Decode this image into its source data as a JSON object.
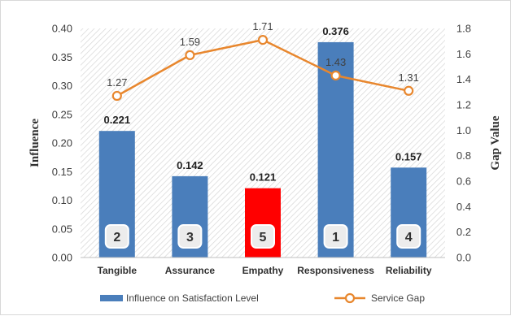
{
  "chart_data": {
    "type": "bar",
    "categories": [
      "Tangible",
      "Assurance",
      "Empathy",
      "Responsiveness",
      "Reliability"
    ],
    "series": [
      {
        "name": "Influence on Satisfaction Level",
        "type": "bar",
        "axis": "left",
        "values": [
          0.221,
          0.142,
          0.121,
          0.376,
          0.157
        ],
        "value_labels": [
          "0.221",
          "0.142",
          "0.121",
          "0.376",
          "0.157"
        ],
        "color": "#4a7ebb",
        "highlight": {
          "category": "Empathy",
          "color": "#ff0000"
        }
      },
      {
        "name": "Service Gap",
        "type": "line",
        "axis": "right",
        "values": [
          1.27,
          1.59,
          1.71,
          1.43,
          1.31
        ],
        "value_labels": [
          "1.27",
          "1.59",
          "1.71",
          "1.43",
          "1.31"
        ],
        "color": "#e8872e"
      }
    ],
    "ranks": [
      "2",
      "3",
      "5",
      "1",
      "4"
    ],
    "ylabel": "Influence",
    "y2label": "Gap Value",
    "ylim": [
      0,
      0.4
    ],
    "y2lim": [
      0,
      1.8
    ],
    "yticks": [
      "0.00",
      "0.05",
      "0.10",
      "0.15",
      "0.20",
      "0.25",
      "0.30",
      "0.35",
      "0.40"
    ],
    "y2ticks": [
      "0.0",
      "0.2",
      "0.4",
      "0.6",
      "0.8",
      "1.0",
      "1.2",
      "1.4",
      "1.6",
      "1.8"
    ],
    "grid": false,
    "background": "hatched",
    "legend_position": "bottom"
  }
}
